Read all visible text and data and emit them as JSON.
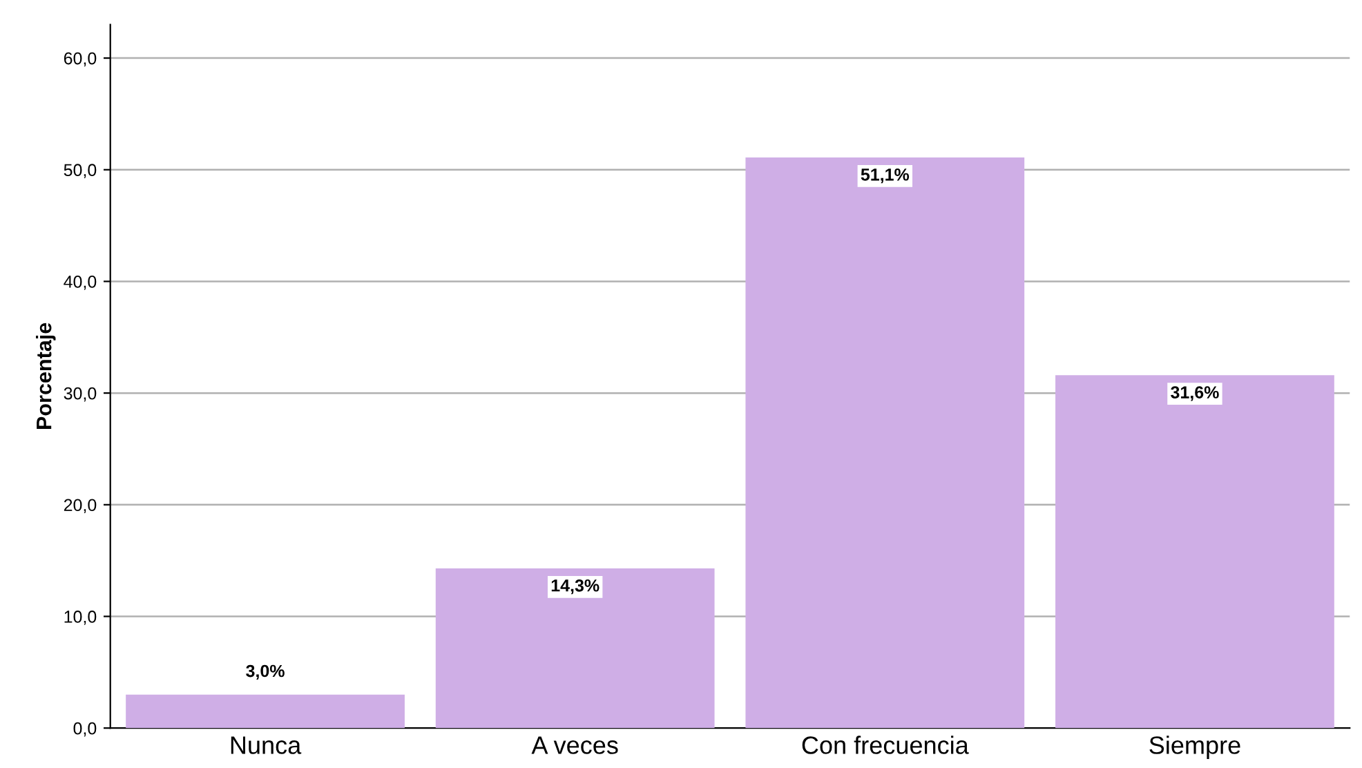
{
  "chart_data": {
    "type": "bar",
    "ylabel": "Porcentaje",
    "categories": [
      "Nunca",
      "A veces",
      "Con frecuencia",
      "Siempre"
    ],
    "values": [
      3.0,
      14.3,
      51.1,
      31.6
    ],
    "value_labels": [
      "3,0%",
      "14,3%",
      "51,1%",
      "31,6%"
    ],
    "color": "#cfaee6",
    "ylim": [
      0,
      63
    ],
    "yticks": [
      {
        "value": 0,
        "label": "0,0"
      },
      {
        "value": 10,
        "label": "10,0"
      },
      {
        "value": 20,
        "label": "20,0"
      },
      {
        "value": 30,
        "label": "30,0"
      },
      {
        "value": 40,
        "label": "40,0"
      },
      {
        "value": 50,
        "label": "50,0"
      },
      {
        "value": 60,
        "label": "60,0"
      }
    ],
    "grid": "y"
  }
}
